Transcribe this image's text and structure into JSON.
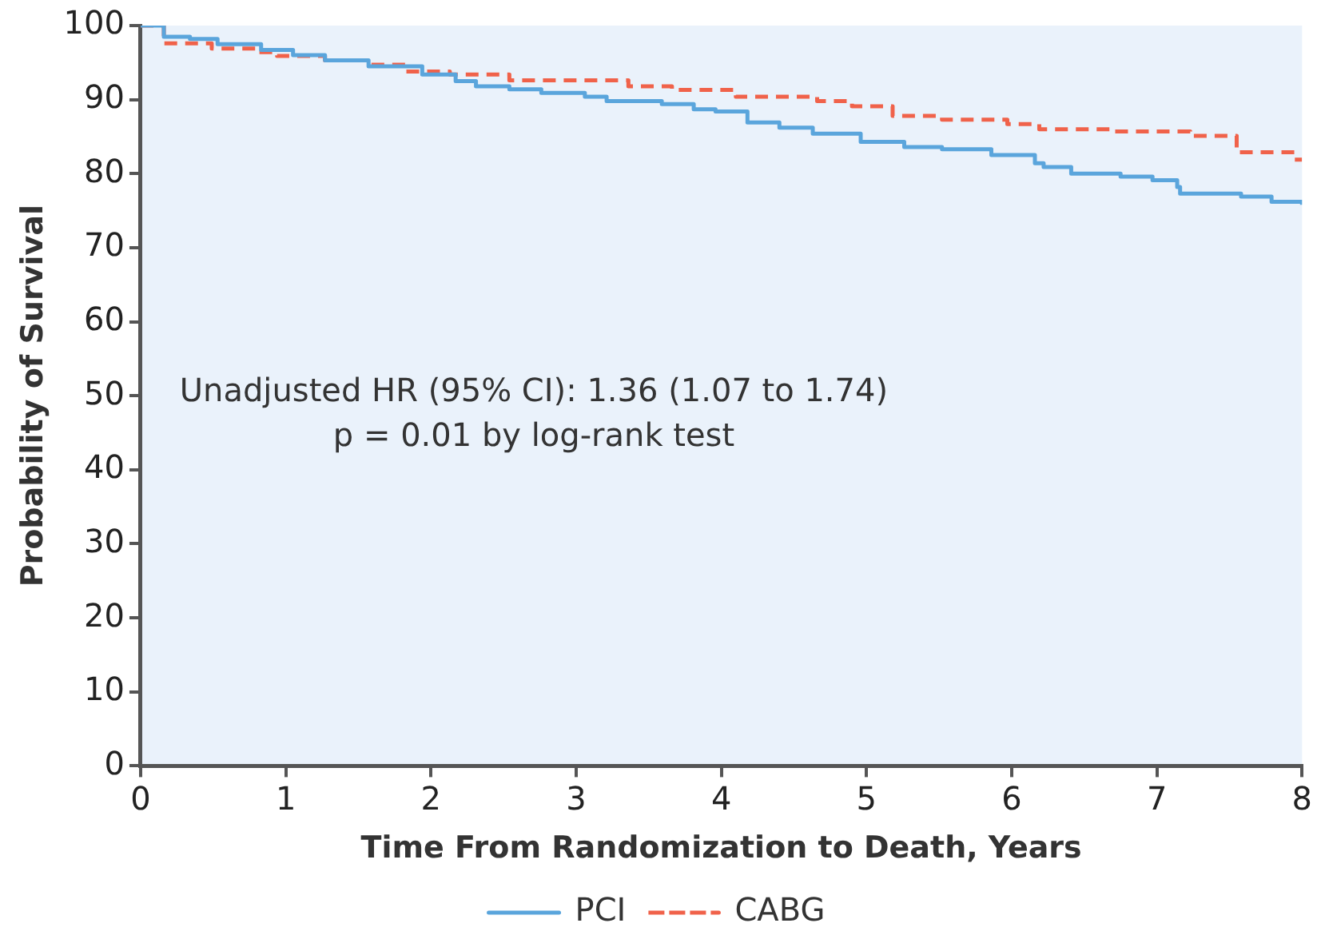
{
  "chart_data": {
    "type": "step",
    "xlabel": "Time From Randomization to Death, Years",
    "ylabel": "Probability of Survival",
    "xlim": [
      0,
      8
    ],
    "xticks": [
      0,
      1,
      2,
      3,
      4,
      5,
      6,
      7,
      8
    ],
    "ylim": [
      0,
      100
    ],
    "yticks": [
      0,
      10,
      20,
      30,
      40,
      50,
      60,
      70,
      80,
      90,
      100
    ],
    "grid": false,
    "legend": "bottom",
    "marker": "none",
    "annotations": [
      "Unadjusted HR (95% CI): 1.36 (1.07 to 1.74)",
      "p = 0.01 by log-rank test"
    ],
    "series": [
      {
        "name": "PCI",
        "color": "#5aa5dc",
        "line_style": "solid",
        "x": [
          0,
          0.16,
          0.34,
          0.53,
          0.83,
          1.05,
          1.27,
          1.57,
          1.94,
          2.17,
          2.31,
          2.54,
          2.76,
          3.06,
          3.21,
          3.59,
          3.81,
          3.96,
          4.18,
          4.4,
          4.63,
          4.96,
          5.26,
          5.52,
          5.86,
          6.16,
          6.22,
          6.41,
          6.75,
          6.97,
          7.14,
          7.16,
          7.58,
          7.79,
          8
        ],
        "values": [
          100,
          98.5,
          98.2,
          97.5,
          96.7,
          96,
          95.3,
          94.5,
          93.4,
          92.5,
          91.8,
          91.4,
          90.9,
          90.4,
          89.8,
          89.4,
          88.7,
          88.4,
          86.9,
          86.2,
          85.4,
          84.3,
          83.6,
          83.3,
          82.5,
          81.4,
          80.9,
          80,
          79.6,
          79.1,
          78.2,
          77.3,
          76.9,
          76.2,
          75.8
        ]
      },
      {
        "name": "CABG",
        "color": "#f0624a",
        "line_style": "dashed",
        "x": [
          0,
          0.16,
          0.49,
          0.79,
          0.94,
          1.27,
          1.57,
          1.83,
          2.13,
          2.54,
          3.36,
          3.66,
          4.1,
          4.66,
          4.9,
          5.18,
          5.52,
          5.97,
          6.19,
          6.69,
          7.23,
          7.55,
          7.95,
          8
        ],
        "values": [
          100,
          97.6,
          96.9,
          96.4,
          95.9,
          95.3,
          94.7,
          93.8,
          93.4,
          92.6,
          91.8,
          91.3,
          90.4,
          89.8,
          89.1,
          87.8,
          87.3,
          86.7,
          86,
          85.7,
          85.1,
          82.9,
          81.9,
          81.9
        ]
      }
    ]
  }
}
